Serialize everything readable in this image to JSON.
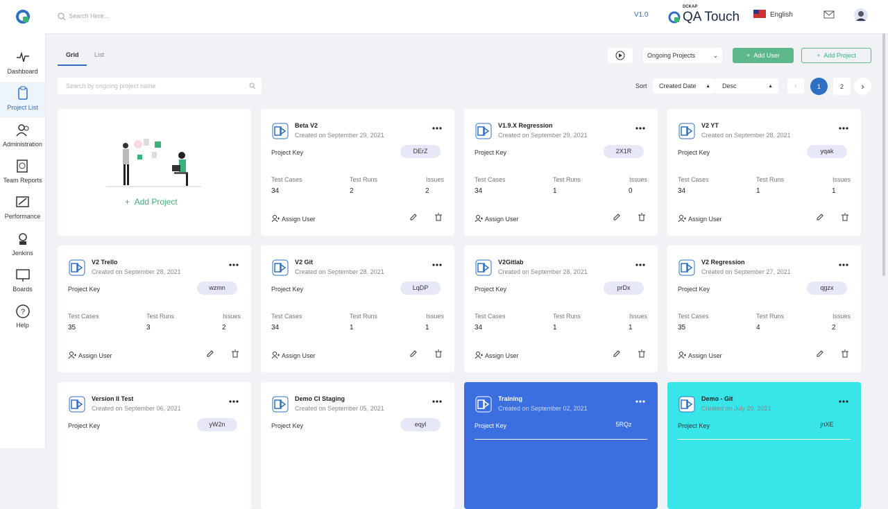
{
  "header": {
    "search_placeholder": "Search Here...",
    "version": "V1.0",
    "brand_small": "DCKAP",
    "brand": "QA Touch",
    "language": "English"
  },
  "sidebar": {
    "items": [
      "Dashboard",
      "Project List",
      "Administration",
      "Team Reports",
      "Performance",
      "Jenkins",
      "Boards",
      "Help"
    ]
  },
  "toolbar": {
    "tabs": [
      "Grid",
      "List"
    ],
    "filter": "Ongoing Projects",
    "add_user": "Add User",
    "add_project": "Add Project",
    "search_placeholder": "Search by ongoing project name",
    "sort_label": "Sort",
    "sort_field": "Created Date",
    "sort_order": "Desc",
    "pages": [
      "1",
      "2"
    ]
  },
  "add_card": {
    "label": "Add Project"
  },
  "card_labels": {
    "project_key": "Project Key",
    "test_cases": "Test Cases",
    "test_runs": "Test Runs",
    "issues": "Issues",
    "assign_user": "Assign User"
  },
  "projects": [
    {
      "name": "Beta V2",
      "created": "Created on September 29, 2021",
      "key": "DErZ",
      "test_cases": "34",
      "test_runs": "2",
      "issues": "2"
    },
    {
      "name": "V1.9.X Regression",
      "created": "Created on September 29, 2021",
      "key": "2X1R",
      "test_cases": "34",
      "test_runs": "1",
      "issues": "0"
    },
    {
      "name": "V2 YT",
      "created": "Created on September 28, 2021",
      "key": "yqak",
      "test_cases": "34",
      "test_runs": "1",
      "issues": "1"
    },
    {
      "name": "V2 Trello",
      "created": "Created on September 28, 2021",
      "key": "wzmn",
      "test_cases": "35",
      "test_runs": "3",
      "issues": "2"
    },
    {
      "name": "V2 Git",
      "created": "Created on September 28, 2021",
      "key": "LqDP",
      "test_cases": "34",
      "test_runs": "1",
      "issues": "1"
    },
    {
      "name": "V2Gitlab",
      "created": "Created on September 28, 2021",
      "key": "prDx",
      "test_cases": "34",
      "test_runs": "1",
      "issues": "1"
    },
    {
      "name": "V2 Regression",
      "created": "Created on September 27, 2021",
      "key": "qgzx",
      "test_cases": "35",
      "test_runs": "4",
      "issues": "2"
    },
    {
      "name": "Version II Test",
      "created": "Created on September 06, 2021",
      "key": "yW2n"
    },
    {
      "name": "Demo CI Staging",
      "created": "Created on September 05, 2021",
      "key": "eqyl"
    },
    {
      "name": "Training",
      "created": "Created on September 02, 2021",
      "key": "5RQz"
    },
    {
      "name": "Demo - Git",
      "created": "Created on July 29, 2021",
      "key": "jnXE"
    }
  ]
}
